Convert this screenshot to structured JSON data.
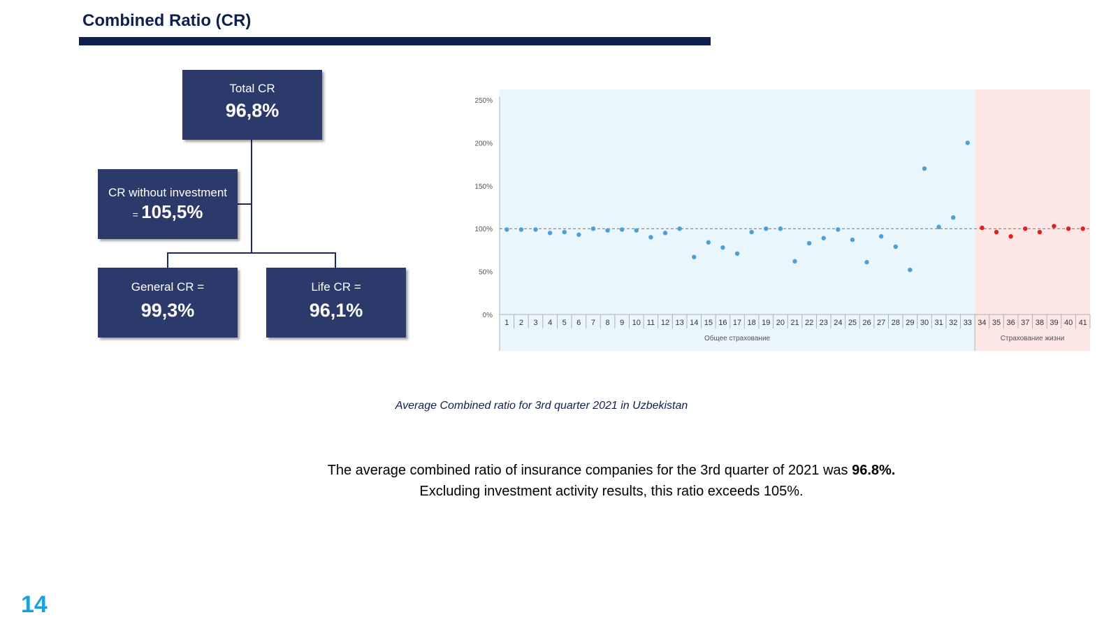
{
  "title": "Combined Ratio (CR)",
  "colors": {
    "navy": "#0f2050",
    "box": "#2b3a6b",
    "general_bg": "#e9f6fc",
    "life_bg": "#fde6e6",
    "general_dot": "#4d9fd4",
    "life_dot": "#e02020",
    "page_number": "#1aa0e0"
  },
  "tree": {
    "total": {
      "label": "Total CR",
      "value": "96,8%"
    },
    "without_investment": {
      "label": "CR without investment",
      "prefix": "=",
      "value": "105,5%"
    },
    "general": {
      "label": "General CR =",
      "value": "99,3%"
    },
    "life": {
      "label": "Life CR =",
      "value": "96,1%"
    }
  },
  "chart_data": {
    "type": "scatter",
    "categories": [
      "1",
      "2",
      "3",
      "4",
      "5",
      "6",
      "7",
      "8",
      "9",
      "10",
      "11",
      "12",
      "13",
      "14",
      "15",
      "16",
      "17",
      "18",
      "19",
      "20",
      "21",
      "22",
      "23",
      "24",
      "25",
      "26",
      "27",
      "28",
      "29",
      "30",
      "31",
      "32",
      "33",
      "34",
      "35",
      "36",
      "37",
      "38",
      "39",
      "40",
      "41"
    ],
    "yticks": [
      "0%",
      "50%",
      "100%",
      "150%",
      "200%",
      "250%"
    ],
    "ylim": [
      0,
      250
    ],
    "reference_line": 100,
    "groups": [
      {
        "label": "Общее страхование",
        "from": 1,
        "to": 33
      },
      {
        "label": "Страхование жизни",
        "from": 34,
        "to": 41
      }
    ],
    "values": [
      99,
      99,
      99,
      95,
      96,
      93,
      100,
      98,
      99,
      98,
      90,
      95,
      100,
      67,
      84,
      78,
      71,
      96,
      100,
      100,
      62,
      83,
      89,
      99,
      87,
      61,
      91,
      79,
      52,
      170,
      102,
      113,
      200,
      101,
      96,
      91,
      100,
      96,
      103,
      100,
      100
    ]
  },
  "caption": "Average Combined ratio for 3rd quarter 2021 in Uzbekistan",
  "summary": {
    "line1_text": "The average combined ratio of insurance companies for the 3rd quarter of 2021 was ",
    "line1_bold": "96.8%.",
    "line2": "Excluding investment activity results, this ratio exceeds 105%."
  },
  "page_number": "14"
}
